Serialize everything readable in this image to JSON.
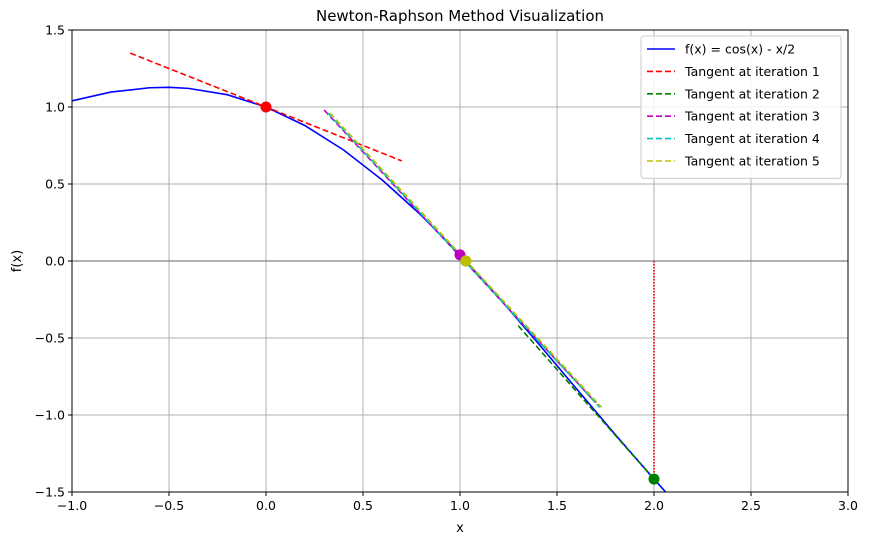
{
  "chart_data": {
    "type": "line",
    "title": "Newton-Raphson Method Visualization",
    "xlabel": "x",
    "ylabel": "f(x)",
    "xlim": [
      -1.0,
      3.0
    ],
    "ylim": [
      -1.5,
      1.5
    ],
    "xticks": [
      -1.0,
      -0.5,
      0.0,
      0.5,
      1.0,
      1.5,
      2.0,
      2.5,
      3.0
    ],
    "xtick_labels": [
      "−1.0",
      "−0.5",
      "0.0",
      "0.5",
      "1.0",
      "1.5",
      "2.0",
      "2.5",
      "3.0"
    ],
    "yticks": [
      -1.5,
      -1.0,
      -0.5,
      0.0,
      0.5,
      1.0,
      1.5
    ],
    "ytick_labels": [
      "−1.5",
      "−1.0",
      "−0.5",
      "0.0",
      "0.5",
      "1.0",
      "1.5"
    ],
    "grid": true,
    "legend_position": "top-right",
    "curve": {
      "name": "f(x) = cos(x) - x/2",
      "color": "#0000ff",
      "x": [
        -1.0,
        -0.8,
        -0.6,
        -0.5,
        -0.4,
        -0.2,
        0.0,
        0.2,
        0.4,
        0.6,
        0.8,
        1.0,
        1.2,
        1.4,
        1.6,
        1.8,
        2.0,
        2.06
      ],
      "y": [
        1.04,
        1.097,
        1.125,
        1.128,
        1.121,
        1.08,
        1.0,
        0.88,
        0.721,
        0.525,
        0.297,
        0.04,
        -0.238,
        -0.53,
        -0.829,
        -1.127,
        -1.416,
        -1.5
      ]
    },
    "tangents": [
      {
        "name": "Tangent at iteration 1",
        "color": "#ff0000",
        "x": [
          -0.7,
          0.7
        ],
        "y": [
          1.35,
          0.65
        ]
      },
      {
        "name": "Tangent at iteration 2",
        "color": "#008000",
        "x": [
          1.3,
          2.0
        ],
        "y": [
          -0.42,
          -1.416
        ]
      },
      {
        "name": "Tangent at iteration 3",
        "color": "#bf00bf",
        "x": [
          0.3,
          1.7
        ],
        "y": [
          0.98,
          -0.92
        ]
      },
      {
        "name": "Tangent at iteration 4",
        "color": "#00bfbf",
        "x": [
          0.32,
          1.72
        ],
        "y": [
          0.96,
          -0.95
        ]
      },
      {
        "name": "Tangent at iteration 5",
        "color": "#bfbf00",
        "x": [
          0.33,
          1.73
        ],
        "y": [
          0.96,
          -0.95
        ]
      }
    ],
    "points": [
      {
        "x": 0.0,
        "y": 1.0,
        "color": "#ff0000"
      },
      {
        "x": 2.0,
        "y": -1.416,
        "color": "#008000"
      },
      {
        "x": 1.0,
        "y": 0.04,
        "color": "#bf00bf"
      },
      {
        "x": 1.03,
        "y": 0.0,
        "color": "#00bfbf"
      },
      {
        "x": 1.03,
        "y": 0.0,
        "color": "#bfbf00"
      }
    ],
    "vertical_lines": [
      {
        "x": 2.0,
        "y": [
          0.0,
          -1.416
        ],
        "color": "#ff0000"
      }
    ]
  }
}
